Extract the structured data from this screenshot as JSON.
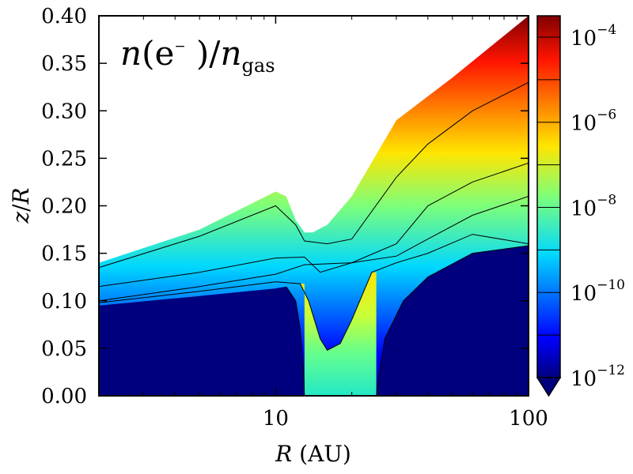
{
  "chart_data": {
    "type": "heatmap",
    "title_parts": {
      "prefix": "n",
      "open": "(e",
      "sup": "−",
      "mid": " )/",
      "n": "n",
      "sub": "gas"
    },
    "x_label": {
      "var": "R",
      "unit": " (AU)"
    },
    "y_label": {
      "var1": "z",
      "slash": "/",
      "var2": "R"
    },
    "x_scale": "log",
    "x_range": [
      2,
      100
    ],
    "y_range": [
      0.0,
      0.4
    ],
    "x_ticks": [
      {
        "value": 10,
        "label": "10"
      },
      {
        "value": 100,
        "label": "100"
      }
    ],
    "y_ticks": [
      {
        "value": 0.0,
        "label": "0.00"
      },
      {
        "value": 0.05,
        "label": "0.05"
      },
      {
        "value": 0.1,
        "label": "0.10"
      },
      {
        "value": 0.15,
        "label": "0.15"
      },
      {
        "value": 0.2,
        "label": "0.20"
      },
      {
        "value": 0.25,
        "label": "0.25"
      },
      {
        "value": 0.3,
        "label": "0.30"
      },
      {
        "value": 0.35,
        "label": "0.35"
      },
      {
        "value": 0.4,
        "label": "0.40"
      }
    ],
    "colorbar": {
      "scale": "log",
      "min_exp": -12,
      "max_exp": -3.5,
      "extend": "min",
      "ticks": [
        {
          "exp": -4,
          "base": "10",
          "sup": "−4"
        },
        {
          "exp": -6,
          "base": "10",
          "sup": "−6"
        },
        {
          "exp": -8,
          "base": "10",
          "sup": "−8"
        },
        {
          "exp": -10,
          "base": "10",
          "sup": "−10"
        },
        {
          "exp": -12,
          "base": "10",
          "sup": "−12"
        }
      ]
    },
    "surface_upper_boundary": [
      [
        2,
        0.14
      ],
      [
        5,
        0.175
      ],
      [
        10,
        0.215
      ],
      [
        11,
        0.21
      ],
      [
        12,
        0.185
      ],
      [
        13,
        0.172
      ],
      [
        14,
        0.172
      ],
      [
        16,
        0.18
      ],
      [
        20,
        0.21
      ],
      [
        30,
        0.29
      ],
      [
        50,
        0.335
      ],
      [
        100,
        0.4
      ]
    ],
    "contours": [
      {
        "level_exp": -4,
        "points": [
          [
            2,
            0.135
          ],
          [
            5,
            0.168
          ],
          [
            10,
            0.2
          ],
          [
            12,
            0.18
          ],
          [
            13,
            0.163
          ],
          [
            16,
            0.16
          ],
          [
            20,
            0.165
          ],
          [
            30,
            0.23
          ],
          [
            40,
            0.265
          ],
          [
            60,
            0.3
          ],
          [
            100,
            0.33
          ]
        ]
      },
      {
        "level_exp": -6,
        "points": [
          [
            2,
            0.115
          ],
          [
            5,
            0.13
          ],
          [
            10,
            0.145
          ],
          [
            13,
            0.146
          ],
          [
            15,
            0.13
          ],
          [
            20,
            0.14
          ],
          [
            30,
            0.16
          ],
          [
            40,
            0.2
          ],
          [
            60,
            0.225
          ],
          [
            100,
            0.245
          ]
        ]
      },
      {
        "level_exp": -8,
        "points": [
          [
            2,
            0.1
          ],
          [
            5,
            0.115
          ],
          [
            10,
            0.128
          ],
          [
            13,
            0.138
          ],
          [
            20,
            0.14
          ],
          [
            30,
            0.147
          ],
          [
            40,
            0.165
          ],
          [
            60,
            0.19
          ],
          [
            100,
            0.21
          ]
        ]
      },
      {
        "level_exp": -10,
        "points": [
          [
            2,
            0.098
          ],
          [
            5,
            0.11
          ],
          [
            10,
            0.12
          ],
          [
            12.5,
            0.118
          ],
          [
            13.5,
            0.1
          ],
          [
            15,
            0.06
          ],
          [
            16,
            0.048
          ],
          [
            18,
            0.055
          ],
          [
            20,
            0.08
          ],
          [
            24,
            0.13
          ],
          [
            30,
            0.14
          ],
          [
            40,
            0.15
          ],
          [
            60,
            0.17
          ],
          [
            100,
            0.16
          ]
        ]
      },
      {
        "level_exp": -12,
        "points": [
          [
            13,
            0.0
          ],
          [
            12.9,
            0.025
          ],
          [
            12.5,
            0.07
          ],
          [
            12,
            0.1
          ],
          [
            11,
            0.115
          ]
        ]
      },
      {
        "level_exp": -12,
        "points": [
          [
            25,
            0.0
          ],
          [
            27,
            0.06
          ],
          [
            32,
            0.1
          ],
          [
            40,
            0.125
          ],
          [
            60,
            0.15
          ],
          [
            100,
            0.158
          ]
        ]
      }
    ]
  }
}
